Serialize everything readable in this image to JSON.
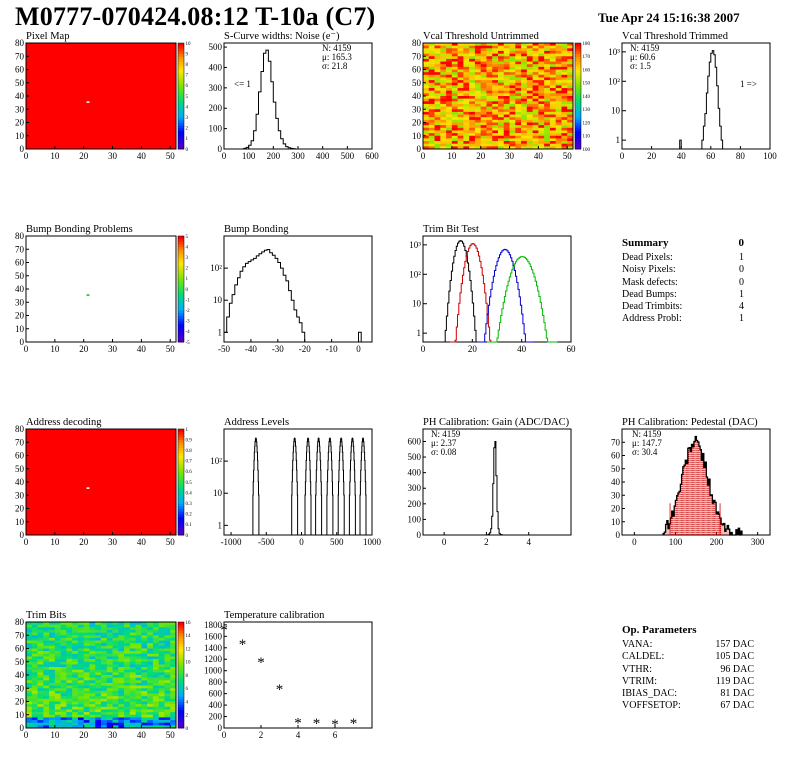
{
  "header": {
    "title": "M0777-070424.08:12 T-10a (C7)",
    "date": "Tue Apr 24 15:16:38 2007"
  },
  "colors": {
    "hist_line": "#000000",
    "trim_red": "#cc0000",
    "trim_blue": "#0000cc",
    "trim_green": "#00bb00",
    "pedestal_fill": "#cc0000"
  },
  "chart_data": [
    {
      "id": "pixel_map",
      "type": "heatmap",
      "title": "Pixel Map",
      "xlim": [
        0,
        52
      ],
      "ylim": [
        0,
        80
      ],
      "xticks": [
        "0",
        "10",
        "20",
        "30",
        "40",
        "50"
      ],
      "yticks": [
        "0",
        "10",
        "20",
        "30",
        "40",
        "50",
        "60",
        "70",
        "80"
      ],
      "palette_max": 10,
      "palette_ticks": [
        "0",
        "1",
        "2",
        "3",
        "4",
        "5",
        "6",
        "7",
        "8",
        "9",
        "10"
      ],
      "fill_value": 10,
      "special_pixels": [
        {
          "x": 21,
          "y": 35,
          "value": 0
        }
      ]
    },
    {
      "id": "scurve_noise",
      "type": "histogram",
      "title": "S-Curve widths: Noise (e⁻)",
      "xlim": [
        0,
        600
      ],
      "ylim": [
        0,
        520
      ],
      "xticks": [
        "0",
        "100",
        "200",
        "300",
        "400",
        "500",
        "600"
      ],
      "yticks": [
        "0",
        "100",
        "200",
        "300",
        "400",
        "500"
      ],
      "stats": {
        "entries": "N: 4159",
        "mean": "μ: 165.3",
        "sigma": "σ: 21.8"
      },
      "annotation": "<= 1",
      "bins_x": [
        80,
        90,
        100,
        110,
        120,
        130,
        140,
        150,
        160,
        170,
        180,
        190,
        200,
        210,
        220,
        230,
        240,
        250,
        260,
        270,
        280,
        290,
        300
      ],
      "bins_y": [
        3,
        8,
        18,
        40,
        90,
        170,
        280,
        380,
        470,
        485,
        430,
        330,
        230,
        150,
        90,
        50,
        25,
        12,
        6,
        3,
        1,
        0,
        0
      ]
    },
    {
      "id": "vcal_untrimmed",
      "type": "heatmap",
      "title": "Vcal Threshold Untrimmed",
      "xlim": [
        0,
        52
      ],
      "ylim": [
        0,
        80
      ],
      "xticks": [
        "0",
        "10",
        "20",
        "30",
        "40",
        "50"
      ],
      "yticks": [
        "0",
        "10",
        "20",
        "30",
        "40",
        "50",
        "60",
        "70",
        "80"
      ],
      "palette_ticks": [
        "100",
        "110",
        "120",
        "130",
        "140",
        "150",
        "160",
        "170",
        "180"
      ]
    },
    {
      "id": "vcal_trimmed",
      "type": "histogram",
      "title": "Vcal Threshold Trimmed",
      "log_y": true,
      "xlim": [
        0,
        100
      ],
      "ylim_log": [
        0.5,
        2000
      ],
      "xticks": [
        "0",
        "20",
        "40",
        "60",
        "80",
        "100"
      ],
      "yticks": [
        "1",
        "10",
        "10²",
        "10³"
      ],
      "stats": {
        "entries": "N: 4159",
        "mean": "μ: 60.6",
        "sigma": "σ:   1.5"
      },
      "annotation": "1 =>",
      "bins_x": [
        54,
        55,
        56,
        57,
        58,
        59,
        60,
        61,
        62,
        63,
        64,
        65,
        66,
        67
      ],
      "bins_y": [
        1,
        3,
        8,
        40,
        150,
        450,
        900,
        1100,
        800,
        300,
        70,
        12,
        3,
        1
      ],
      "outlier": {
        "x": 39,
        "y": 1
      }
    },
    {
      "id": "bump_problems",
      "type": "heatmap",
      "title": "Bump Bonding Problems",
      "xlim": [
        0,
        52
      ],
      "ylim": [
        0,
        80
      ],
      "xticks": [
        "0",
        "10",
        "20",
        "30",
        "40",
        "50"
      ],
      "yticks": [
        "0",
        "10",
        "20",
        "30",
        "40",
        "50",
        "60",
        "70",
        "80"
      ],
      "palette_ticks": [
        "-5",
        "-4",
        "-3",
        "-2",
        "-1",
        "0",
        "1",
        "2",
        "3",
        "4",
        "5"
      ],
      "special_pixels": [
        {
          "x": 21,
          "y": 35,
          "value": 1
        }
      ]
    },
    {
      "id": "bump_bonding",
      "type": "histogram",
      "title": "Bump Bonding",
      "log_y": true,
      "xlim": [
        -50,
        5
      ],
      "ylim_log": [
        0.5,
        1000
      ],
      "xticks": [
        "-50",
        "-40",
        "-30",
        "-20",
        "-10",
        "0"
      ],
      "yticks": [
        "1",
        "10",
        "10²"
      ],
      "bins_x": [
        -50,
        -49,
        -48,
        -47,
        -46,
        -45,
        -44,
        -43,
        -42,
        -41,
        -40,
        -39,
        -38,
        -37,
        -36,
        -35,
        -34,
        -33,
        -32,
        -31,
        -30,
        -29,
        -28,
        -27,
        -26,
        -25,
        -24,
        -23,
        -22,
        -21,
        -20,
        -19
      ],
      "bins_y": [
        1,
        3,
        8,
        15,
        30,
        50,
        80,
        110,
        140,
        160,
        180,
        200,
        240,
        280,
        320,
        360,
        380,
        300,
        250,
        200,
        150,
        100,
        60,
        40,
        20,
        10,
        5,
        3,
        2,
        1,
        0,
        0
      ],
      "outlier": {
        "x": 0,
        "y": 1
      }
    },
    {
      "id": "trim_bit_test",
      "type": "histogram",
      "title": "Trim Bit Test",
      "log_y": true,
      "xlim": [
        0,
        60
      ],
      "ylim_log": [
        0.5,
        2000
      ],
      "xticks": [
        "0",
        "20",
        "40",
        "60"
      ],
      "yticks": [
        "1",
        "10",
        "10²",
        "10³"
      ],
      "series": [
        {
          "color_key": "hist_line",
          "center": 15,
          "width": 1.6,
          "peak": 1400
        },
        {
          "color_key": "trim_red",
          "center": 20,
          "width": 1.8,
          "peak": 1100
        },
        {
          "color_key": "trim_blue",
          "center": 33,
          "width": 2.2,
          "peak": 700
        },
        {
          "color_key": "trim_green",
          "center": 40,
          "width": 2.8,
          "peak": 400
        }
      ]
    },
    {
      "id": "address_decoding",
      "type": "heatmap",
      "title": "Address decoding",
      "xlim": [
        0,
        52
      ],
      "ylim": [
        0,
        80
      ],
      "xticks": [
        "0",
        "10",
        "20",
        "30",
        "40",
        "50"
      ],
      "yticks": [
        "0",
        "10",
        "20",
        "30",
        "40",
        "50",
        "60",
        "70",
        "80"
      ],
      "palette_ticks": [
        "0",
        "0.1",
        "0.2",
        "0.3",
        "0.4",
        "0.5",
        "0.6",
        "0.7",
        "0.8",
        "0.9",
        "1"
      ],
      "special_pixels": [
        {
          "x": 21,
          "y": 35,
          "value": 0
        }
      ]
    },
    {
      "id": "address_levels",
      "type": "histogram",
      "title": "Address Levels",
      "log_y": true,
      "xlim": [
        -1100,
        1000
      ],
      "ylim_log": [
        0.5,
        1000
      ],
      "xticks": [
        "-1000",
        "-500",
        "0",
        "500",
        "1000"
      ],
      "yticks": [
        "1",
        "10",
        "10²"
      ],
      "peaks": [
        -650,
        -100,
        90,
        240,
        400,
        560,
        720,
        870
      ]
    },
    {
      "id": "ph_gain",
      "type": "histogram",
      "title": "PH Calibration: Gain (ADC/DAC)",
      "xlim": [
        -1,
        6
      ],
      "ylim": [
        0,
        680
      ],
      "xticks": [
        "0",
        "2",
        "4"
      ],
      "yticks": [
        "0",
        "100",
        "200",
        "300",
        "400",
        "500",
        "600"
      ],
      "stats": {
        "entries": "N: 4159",
        "mean": "μ: 2.37",
        "sigma": "σ: 0.08"
      },
      "bins_x": [
        2.05,
        2.1,
        2.15,
        2.2,
        2.25,
        2.3,
        2.35,
        2.4,
        2.45,
        2.5,
        2.55,
        2.6,
        2.65,
        2.7
      ],
      "bins_y": [
        2,
        6,
        15,
        40,
        120,
        330,
        560,
        600,
        380,
        150,
        40,
        10,
        3,
        1
      ]
    },
    {
      "id": "ph_pedestal",
      "type": "histogram",
      "title": "PH Calibration: Pedestal (DAC)",
      "xlim": [
        -30,
        330
      ],
      "ylim": [
        0,
        80
      ],
      "xticks": [
        "0",
        "100",
        "200",
        "300"
      ],
      "yticks": [
        "0",
        "10",
        "20",
        "30",
        "40",
        "50",
        "60",
        "70"
      ],
      "stats": {
        "entries": "N: 4159",
        "mean": "μ: 147.7",
        "sigma": "σ: 30.4"
      },
      "mean_value": 147.7,
      "sigma_value": 30.4
    },
    {
      "id": "trim_bits",
      "type": "heatmap",
      "title": "Trim Bits",
      "xlim": [
        0,
        52
      ],
      "ylim": [
        0,
        80
      ],
      "xticks": [
        "0",
        "10",
        "20",
        "30",
        "40",
        "50"
      ],
      "yticks": [
        "0",
        "10",
        "20",
        "30",
        "40",
        "50",
        "60",
        "70",
        "80"
      ],
      "palette_ticks": [
        "0",
        "2",
        "4",
        "6",
        "8",
        "10",
        "12",
        "14",
        "16"
      ]
    },
    {
      "id": "temperature",
      "type": "scatter",
      "title": "Temperature calibration",
      "xlim": [
        0,
        8
      ],
      "ylim": [
        0,
        1850
      ],
      "xticks": [
        "0",
        "2",
        "4",
        "6"
      ],
      "yticks": [
        "0",
        "200",
        "400",
        "600",
        "800",
        "1000",
        "1200",
        "1400",
        "1600",
        "1800"
      ],
      "x": [
        0,
        1,
        2,
        3,
        4,
        5,
        6,
        7
      ],
      "y": [
        1720,
        1470,
        1150,
        680,
        100,
        85,
        70,
        90
      ]
    }
  ],
  "summary": {
    "title": "Summary",
    "value": "0",
    "rows": [
      {
        "label": "Dead Pixels:",
        "value": "1"
      },
      {
        "label": "Noisy Pixels:",
        "value": "0"
      },
      {
        "label": "Mask defects:",
        "value": "0"
      },
      {
        "label": "Dead Bumps:",
        "value": "1"
      },
      {
        "label": "Dead Trimbits:",
        "value": "4"
      },
      {
        "label": "Address Probl:",
        "value": "1"
      }
    ]
  },
  "op_params": {
    "title": "Op. Parameters",
    "rows": [
      {
        "label": "VANA:",
        "value": "157 DAC"
      },
      {
        "label": "CALDEL:",
        "value": "105 DAC"
      },
      {
        "label": "VTHR:",
        "value": "96 DAC"
      },
      {
        "label": "VTRIM:",
        "value": "119 DAC"
      },
      {
        "label": "IBIAS_DAC:",
        "value": "81 DAC"
      },
      {
        "label": "VOFFSETOP:",
        "value": "67 DAC"
      }
    ]
  }
}
